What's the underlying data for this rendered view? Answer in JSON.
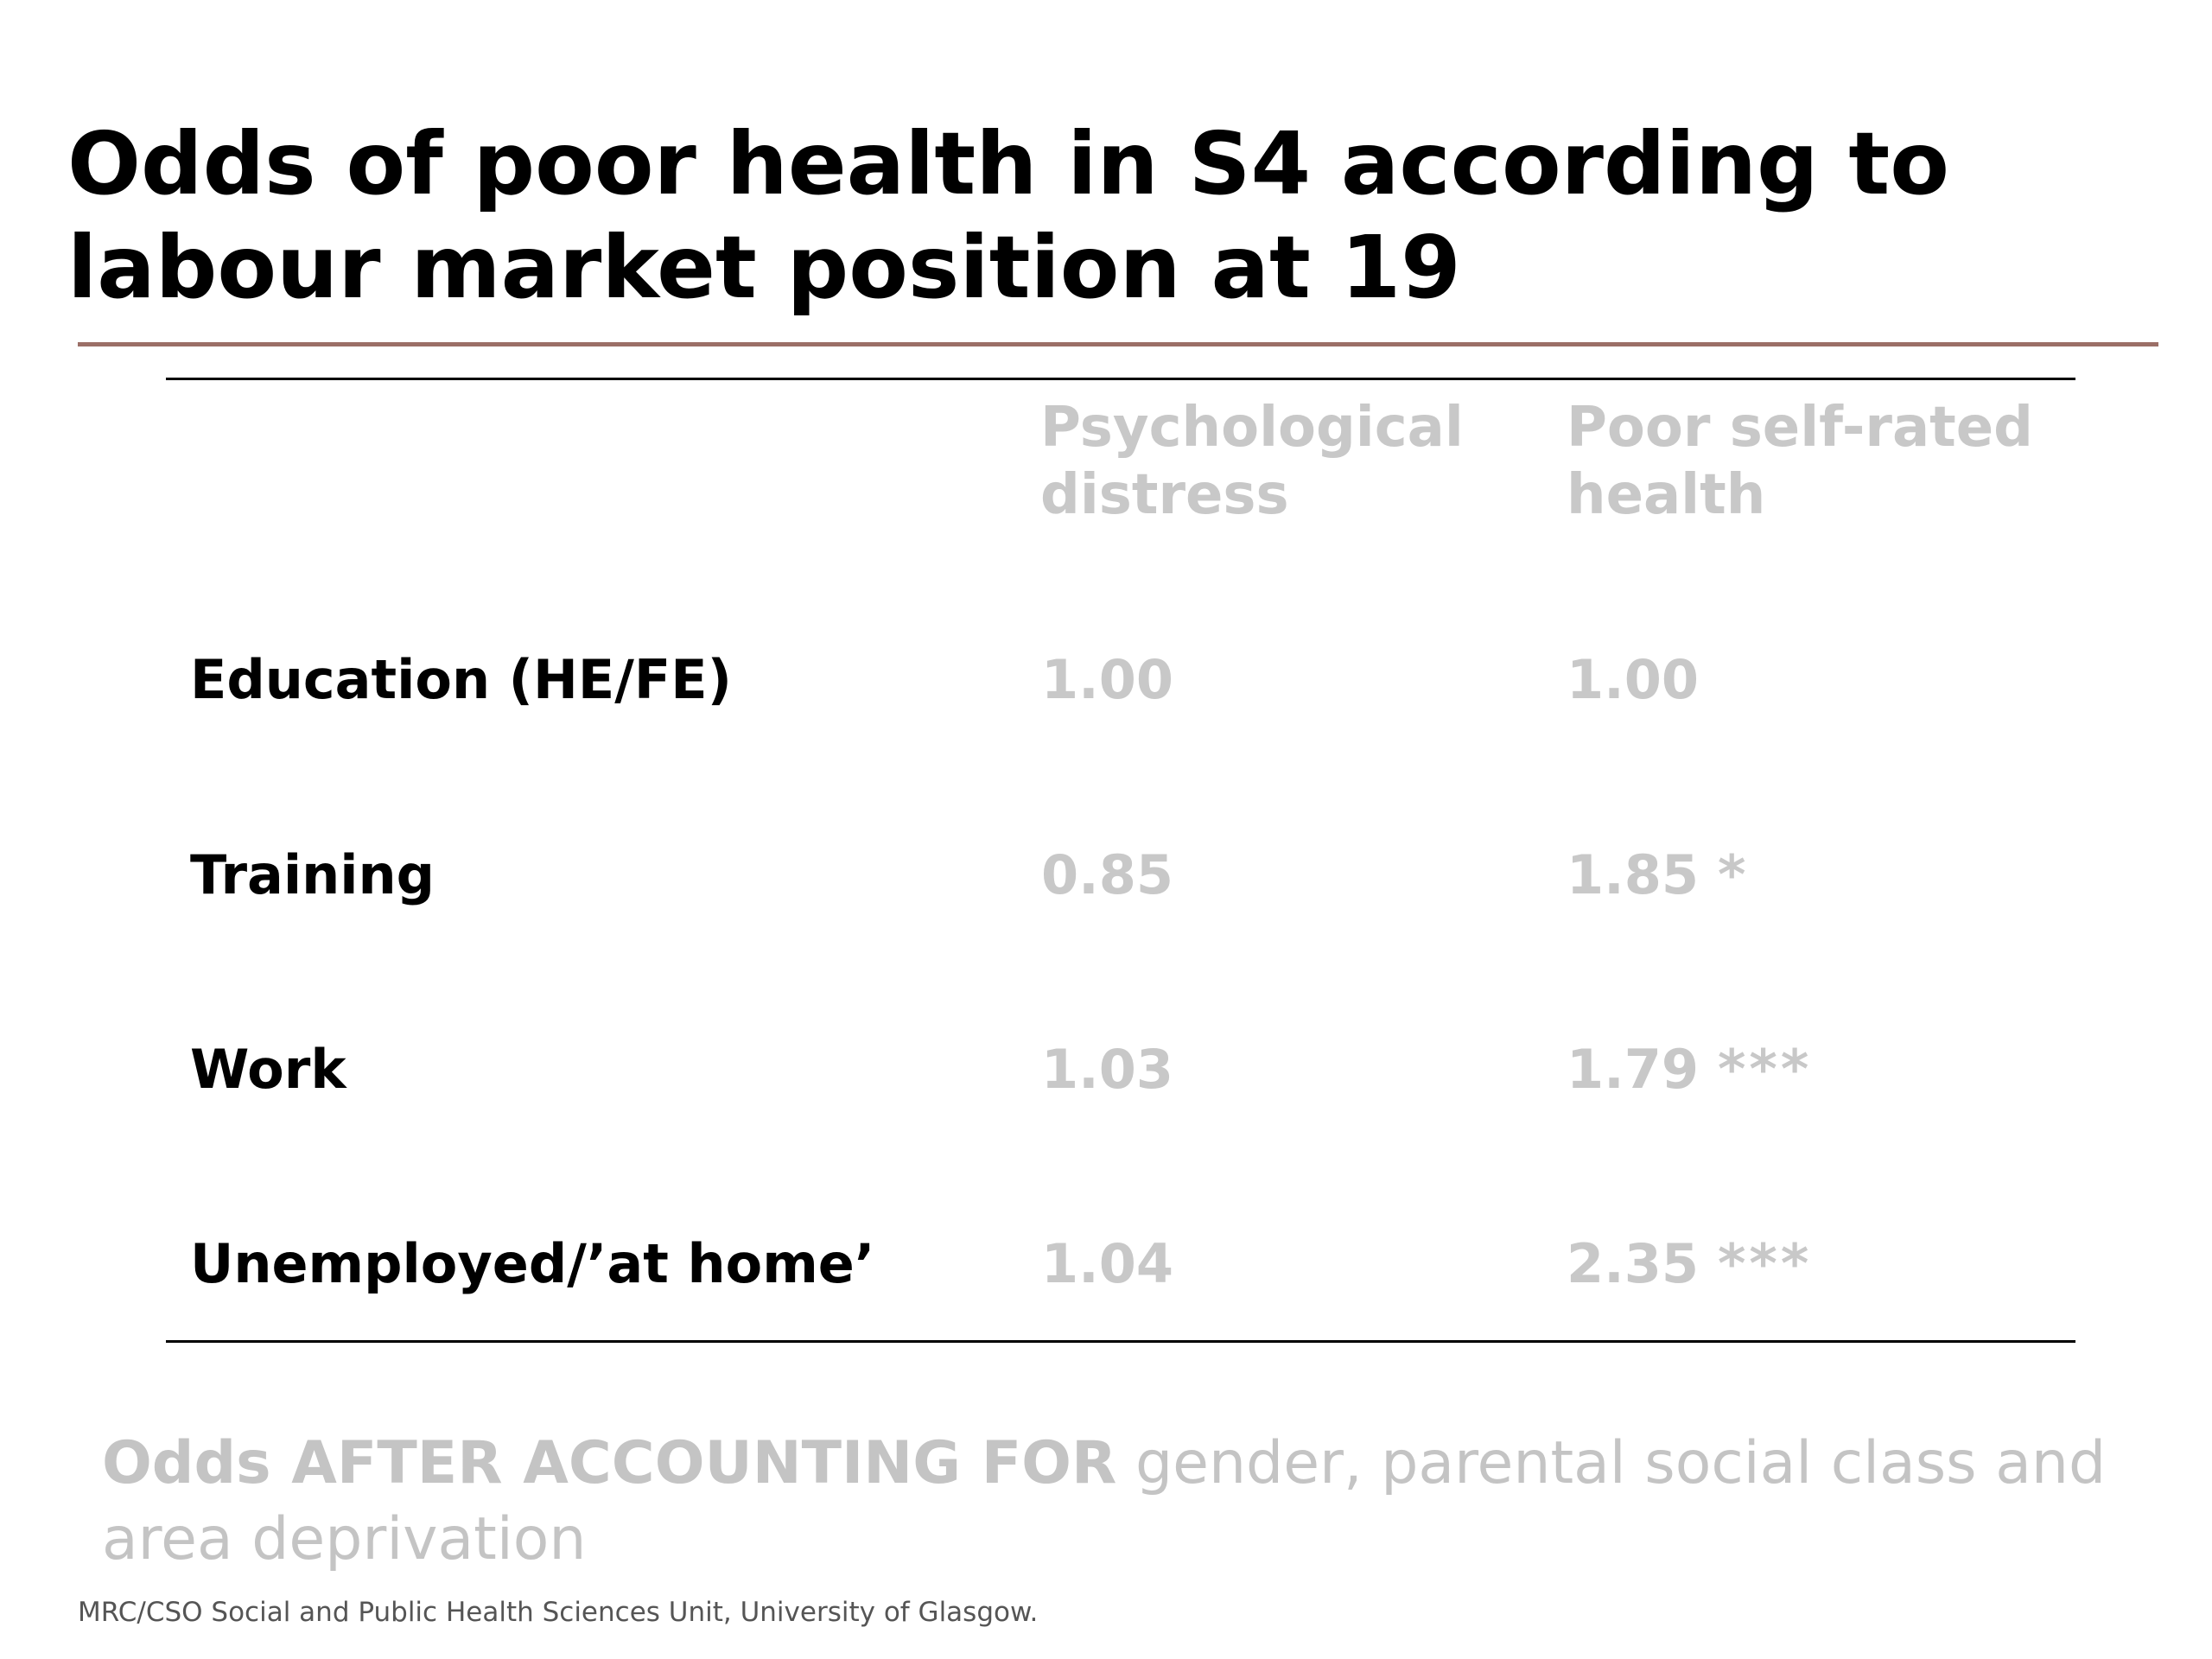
{
  "title": {
    "line1": "Odds of poor health in S4 according to",
    "line2": "labour market position at 19"
  },
  "table": {
    "columns": [
      {
        "line1": "Psychological",
        "line2": "distress"
      },
      {
        "line1": "Poor self-rated",
        "line2": "health"
      }
    ],
    "rows": [
      {
        "label": "Education (HE/FE)",
        "psych_distress": "1.00",
        "self_rated": "1.00",
        "self_rated_sig": ""
      },
      {
        "label": "Training",
        "psych_distress": "0.85",
        "self_rated": "1.85",
        "self_rated_sig": "*"
      },
      {
        "label": "Work",
        "psych_distress": "1.03",
        "self_rated": "1.79",
        "self_rated_sig": "***"
      },
      {
        "label": "Unemployed/’at home’",
        "psych_distress": "1.04",
        "self_rated": "2.35",
        "self_rated_sig": "***"
      }
    ]
  },
  "note": {
    "emphasis": "Odds AFTER ACCOUNTING FOR",
    "rest": " gender, parental social class and area deprivation"
  },
  "footer": "MRC/CSO Social and Public Health Sciences Unit, University of Glasgow.",
  "colors": {
    "title": "#000000",
    "title_rule": "#9b6f67",
    "muted_text": "#c8c8c8",
    "footer_text": "#555555"
  }
}
